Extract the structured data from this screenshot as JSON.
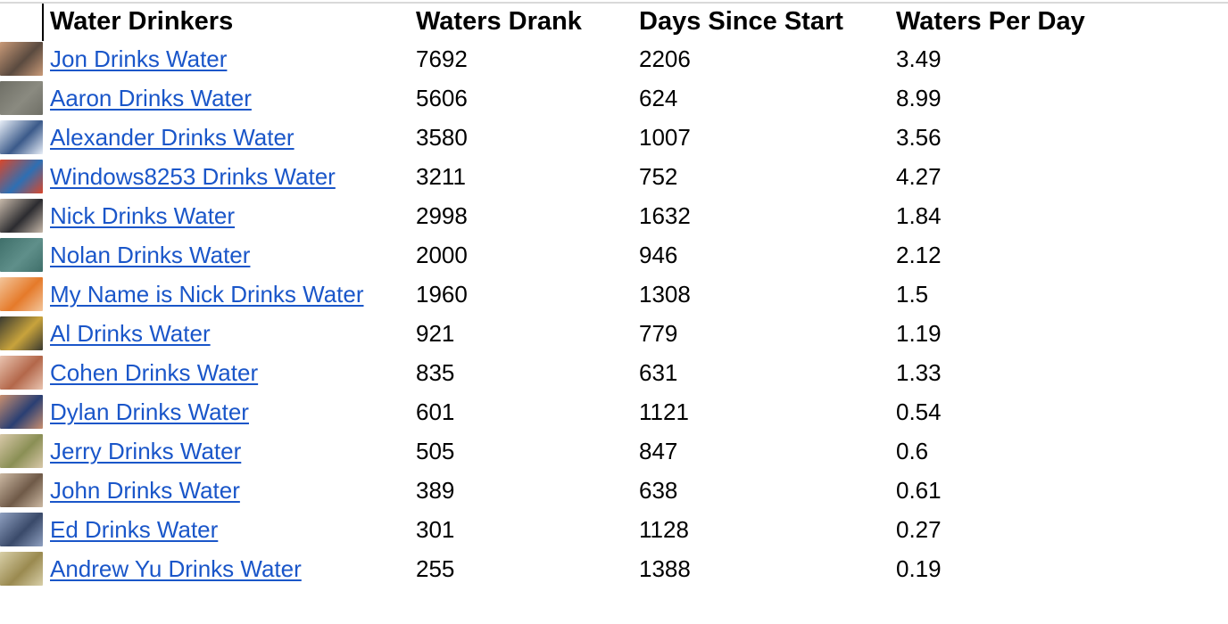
{
  "table": {
    "headers": {
      "name": "Water Drinkers",
      "drank": "Waters Drank",
      "days": "Days Since Start",
      "rate": "Waters Per Day"
    },
    "rows": [
      {
        "name": "Jon Drinks Water",
        "drank": "7692",
        "days": "2206",
        "rate": "3.49",
        "thumb_color": "#5a4a3f",
        "thumb_accent": "#c99a78"
      },
      {
        "name": "Aaron Drinks Water",
        "drank": "5606",
        "days": "624",
        "rate": "8.99",
        "thumb_color": "#8a8a80",
        "thumb_accent": "#6f6f66"
      },
      {
        "name": "Alexander Drinks Water",
        "drank": "3580",
        "days": "1007",
        "rate": "3.56",
        "thumb_color": "#3b5a8a",
        "thumb_accent": "#e8eef7"
      },
      {
        "name": "Windows8253 Drinks Water",
        "drank": "3211",
        "days": "752",
        "rate": "4.27",
        "thumb_color": "#2e6fb3",
        "thumb_accent": "#d9472b"
      },
      {
        "name": "Nick Drinks Water",
        "drank": "2998",
        "days": "1632",
        "rate": "1.84",
        "thumb_color": "#2c2c30",
        "thumb_accent": "#c7b9aa"
      },
      {
        "name": "Nolan Drinks Water",
        "drank": "2000",
        "days": "946",
        "rate": "2.12",
        "thumb_color": "#5f8f8a",
        "thumb_accent": "#3f6f6a"
      },
      {
        "name": "My Name is Nick Drinks Water",
        "drank": "1960",
        "days": "1308",
        "rate": "1.5",
        "thumb_color": "#e57a2a",
        "thumb_accent": "#f3c59a"
      },
      {
        "name": "Al Drinks Water",
        "drank": "921",
        "days": "779",
        "rate": "1.19",
        "thumb_color": "#c8a33c",
        "thumb_accent": "#3a3a30"
      },
      {
        "name": "Cohen Drinks Water",
        "drank": "835",
        "days": "631",
        "rate": "1.33",
        "thumb_color": "#b3674a",
        "thumb_accent": "#e9c4b0"
      },
      {
        "name": "Dylan Drinks Water",
        "drank": "601",
        "days": "1121",
        "rate": "0.54",
        "thumb_color": "#2a3f73",
        "thumb_accent": "#c98f70"
      },
      {
        "name": "Jerry Drinks Water",
        "drank": "505",
        "days": "847",
        "rate": "0.6",
        "thumb_color": "#8a8f55",
        "thumb_accent": "#d8c8a8"
      },
      {
        "name": "John Drinks Water",
        "drank": "389",
        "days": "638",
        "rate": "0.61",
        "thumb_color": "#6f5a48",
        "thumb_accent": "#cbb8a2"
      },
      {
        "name": "Ed Drinks Water",
        "drank": "301",
        "days": "1128",
        "rate": "0.27",
        "thumb_color": "#3a4a6a",
        "thumb_accent": "#8fa0c0"
      },
      {
        "name": "Andrew Yu Drinks Water",
        "drank": "255",
        "days": "1388",
        "rate": "0.19",
        "thumb_color": "#9a8a50",
        "thumb_accent": "#d8cfa8"
      }
    ]
  }
}
